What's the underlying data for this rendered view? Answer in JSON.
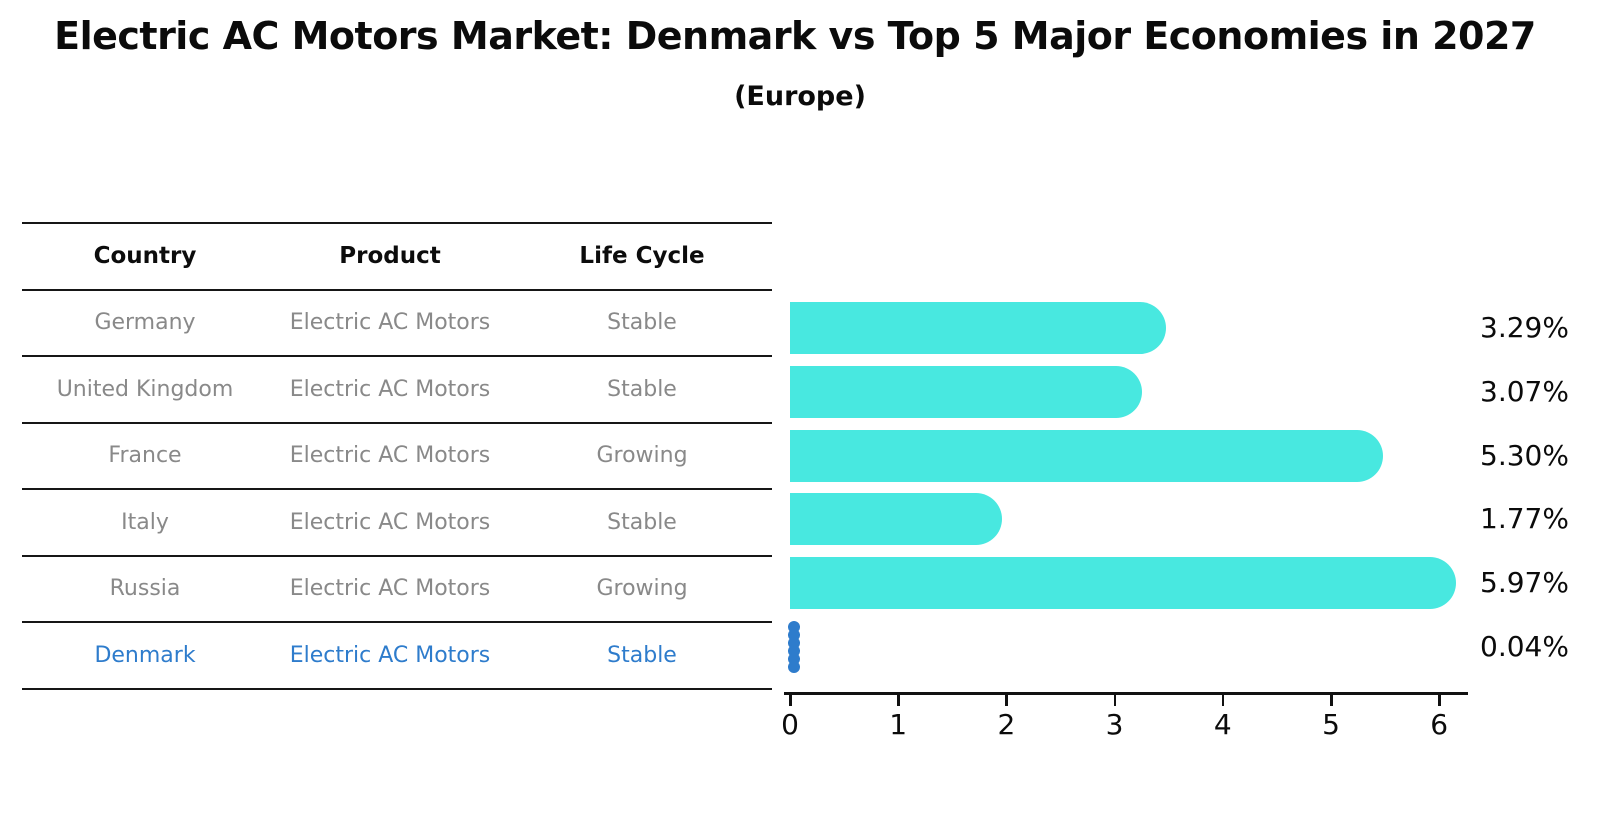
{
  "title": "Electric AC Motors Market: Denmark vs Top 5 Major Economies in 2027",
  "subtitle": "(Europe)",
  "table": {
    "headers": [
      "Country",
      "Product",
      "Life Cycle"
    ],
    "rows": [
      {
        "country": "Germany",
        "product": "Electric AC Motors",
        "life_cycle": "Stable",
        "highlight": false
      },
      {
        "country": "United Kingdom",
        "product": "Electric AC Motors",
        "life_cycle": "Stable",
        "highlight": false
      },
      {
        "country": "France",
        "product": "Electric AC Motors",
        "life_cycle": "Growing",
        "highlight": false
      },
      {
        "country": "Italy",
        "product": "Electric AC Motors",
        "life_cycle": "Stable",
        "highlight": false
      },
      {
        "country": "Russia",
        "product": "Electric AC Motors",
        "life_cycle": "Growing",
        "highlight": false
      },
      {
        "country": "Denmark",
        "product": "Electric AC Motors",
        "life_cycle": "Stable",
        "highlight": true
      }
    ]
  },
  "chart_data": {
    "type": "bar",
    "orientation": "horizontal",
    "categories": [
      "Germany",
      "United Kingdom",
      "France",
      "Italy",
      "Russia",
      "Denmark"
    ],
    "values": [
      3.29,
      3.07,
      5.3,
      1.77,
      5.97,
      0.04
    ],
    "value_labels": [
      "3.29%",
      "3.07%",
      "5.30%",
      "1.77%",
      "5.97%",
      "0.04%"
    ],
    "x_ticks": [
      "0",
      "1",
      "2",
      "3",
      "4",
      "5",
      "6"
    ],
    "xlim": [
      0,
      6.3
    ],
    "grid": false,
    "legend": "none",
    "bar_color": "#48E8E0",
    "highlight_color": "#2E7CCC",
    "highlight_index": 5,
    "table_text_color": "#898989"
  }
}
